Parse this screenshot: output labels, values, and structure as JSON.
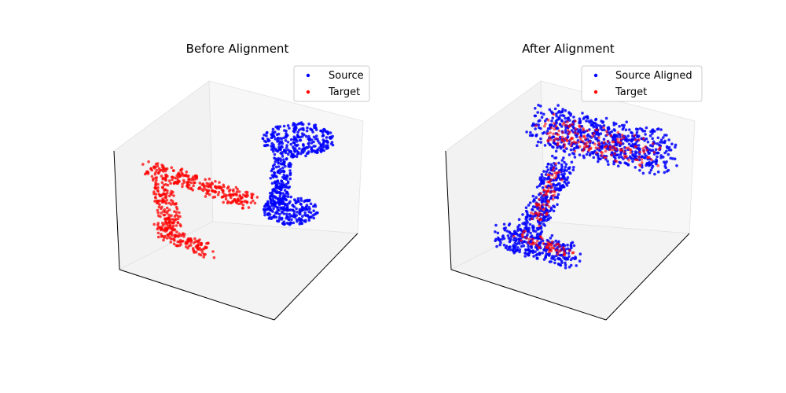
{
  "chart_data": [
    {
      "type": "scatter",
      "projection": "3d",
      "title": "Before Alignment",
      "xlabel": "",
      "ylabel": "",
      "zlabel": "",
      "ticks": "hidden",
      "legend_position": "upper-right",
      "series": [
        {
          "name": "Source",
          "color": "#0000ff",
          "shape": "power-drill",
          "pose": "rotated-upright"
        },
        {
          "name": "Target",
          "color": "#ff0000",
          "shape": "power-drill",
          "pose": "sideways"
        }
      ]
    },
    {
      "type": "scatter",
      "projection": "3d",
      "title": "After Alignment",
      "xlabel": "",
      "ylabel": "",
      "zlabel": "",
      "ticks": "hidden",
      "legend_position": "upper-right",
      "series": [
        {
          "name": "Source Aligned",
          "color": "#0000ff",
          "shape": "power-drill",
          "pose": "aligned"
        },
        {
          "name": "Target",
          "color": "#ff0000",
          "shape": "power-drill",
          "pose": "aligned"
        }
      ]
    }
  ]
}
